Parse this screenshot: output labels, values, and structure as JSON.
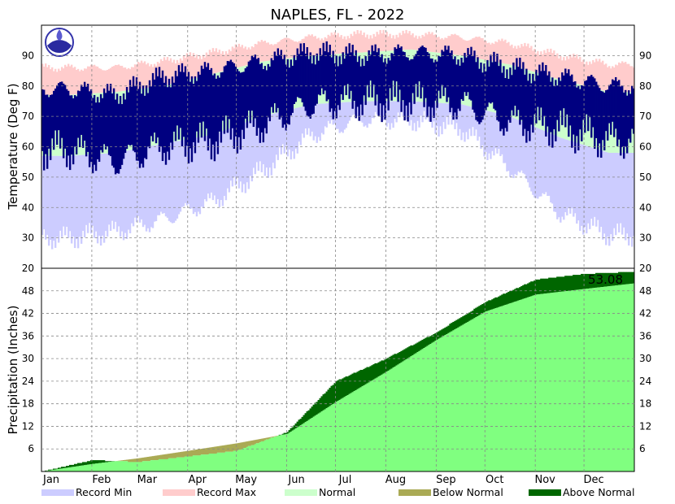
{
  "chart_data": {
    "type": "area",
    "title": "NAPLES, FL - 2022",
    "months": [
      "Jan",
      "Feb",
      "Mar",
      "Apr",
      "May",
      "Jun",
      "Jul",
      "Aug",
      "Sep",
      "Oct",
      "Nov",
      "Dec"
    ],
    "temperature": {
      "ylabel": "Temperature (Deg F)",
      "ylim": [
        20,
        100
      ],
      "yticks": [
        30,
        40,
        50,
        60,
        70,
        80,
        90
      ],
      "series": [
        {
          "name": "Record Max",
          "color": "#ffcccc",
          "values": [
            86,
            86,
            88,
            91,
            94,
            96,
            97,
            97,
            96,
            94,
            90,
            87
          ]
        },
        {
          "name": "Record Min",
          "color": "#ccccff",
          "values": [
            30,
            32,
            36,
            42,
            52,
            64,
            69,
            69,
            66,
            53,
            38,
            31
          ]
        },
        {
          "name": "Normal High",
          "color": "#ccffcc",
          "values": [
            77,
            78,
            80,
            84,
            88,
            90,
            91,
            92,
            90,
            87,
            82,
            78
          ]
        },
        {
          "name": "Normal Low",
          "color": "#ccffcc",
          "values": [
            57,
            58,
            61,
            64,
            70,
            74,
            75,
            75,
            74,
            70,
            63,
            58
          ]
        },
        {
          "name": "Observed High",
          "color": "#000080",
          "values": [
            79,
            77,
            83,
            85,
            88,
            91,
            90,
            91,
            90,
            86,
            83,
            80
          ]
        },
        {
          "name": "Observed Low",
          "color": "#000080",
          "values": [
            59,
            55,
            60,
            62,
            67,
            74,
            75,
            75,
            74,
            68,
            66,
            62
          ]
        }
      ]
    },
    "precipitation": {
      "ylabel": "Precipitation (Inches)",
      "ylim": [
        0,
        54
      ],
      "yticks": [
        6,
        12,
        18,
        24,
        30,
        36,
        42,
        48
      ],
      "top_tick_label": "20",
      "total_label": "53.08",
      "series": [
        {
          "name": "Normal",
          "color": "#80ff80",
          "x": [
            0,
            31,
            59,
            90,
            120,
            151,
            181,
            212,
            243,
            273,
            304,
            334,
            365
          ],
          "values": [
            0,
            2.0,
            3.5,
            5.5,
            7.5,
            10.0,
            18.5,
            26.5,
            35.0,
            42.5,
            47.0,
            48.5,
            50.0
          ]
        },
        {
          "name": "Observed",
          "x": [
            0,
            31,
            59,
            90,
            120,
            151,
            181,
            212,
            243,
            273,
            304,
            334,
            365
          ],
          "values": [
            0,
            3.0,
            2.5,
            4.0,
            5.5,
            10.5,
            24.0,
            30.0,
            37.0,
            45.0,
            51.0,
            52.5,
            53.08
          ]
        }
      ]
    },
    "legend": [
      {
        "label": "Record Min",
        "color": "#ccccff"
      },
      {
        "label": "Record Max",
        "color": "#ffcccc"
      },
      {
        "label": "Normal",
        "color": "#ccffcc"
      },
      {
        "label": "Below Normal",
        "color": "#aaaa55"
      },
      {
        "label": "Above Normal",
        "color": "#006600"
      }
    ],
    "grid": true
  }
}
